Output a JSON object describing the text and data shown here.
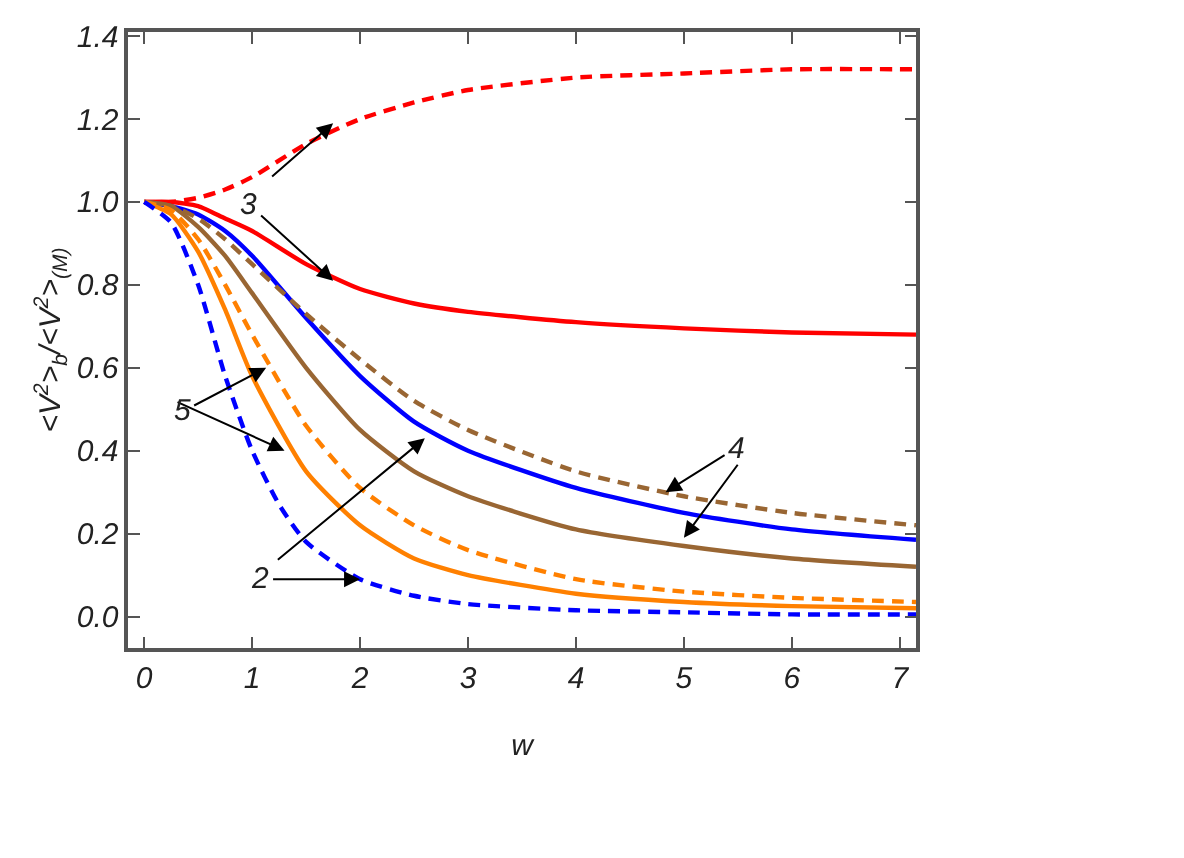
{
  "chart_data": {
    "type": "line",
    "xlabel": "w",
    "ylabel": "<V$^{2}$>$_{b}$/<V$^{2}$>$_{(M)}$",
    "xlim": [
      -0.15,
      7.15
    ],
    "ylim": [
      -0.076,
      1.41
    ],
    "xticks": [
      0,
      1,
      2,
      3,
      4,
      5,
      6,
      7
    ],
    "yticks": [
      {
        "value": 0,
        "label": "0.0"
      },
      0.2,
      0.4,
      0.6,
      0.8,
      {
        "value": 1,
        "label": "1.0"
      },
      1.2,
      1.4
    ],
    "marker": "none",
    "series": [
      {
        "color": "#ff0000",
        "line_style": "dashed",
        "x": [
          0,
          0.25,
          0.5,
          0.75,
          1,
          1.5,
          2,
          2.5,
          3,
          4,
          5,
          6,
          7.15
        ],
        "values": [
          1.0,
          1.0,
          1.01,
          1.03,
          1.06,
          1.14,
          1.2,
          1.24,
          1.27,
          1.3,
          1.31,
          1.32,
          1.32
        ]
      },
      {
        "color": "#ff0000",
        "line_style": "solid",
        "x": [
          0,
          0.25,
          0.5,
          0.75,
          1,
          1.5,
          2,
          2.5,
          3,
          4,
          5,
          6,
          7.15
        ],
        "values": [
          1.0,
          1.0,
          0.99,
          0.96,
          0.93,
          0.85,
          0.79,
          0.755,
          0.735,
          0.71,
          0.695,
          0.685,
          0.68
        ]
      },
      {
        "color": "#0000ff",
        "line_style": "solid",
        "x": [
          0,
          0.25,
          0.5,
          0.75,
          1,
          1.5,
          2,
          2.5,
          3,
          4,
          5,
          6,
          7.15
        ],
        "values": [
          1.0,
          0.99,
          0.97,
          0.93,
          0.87,
          0.72,
          0.58,
          0.47,
          0.4,
          0.31,
          0.25,
          0.21,
          0.185
        ]
      },
      {
        "color": "#996633",
        "line_style": "dashed",
        "x": [
          0,
          0.25,
          0.5,
          0.75,
          1,
          1.5,
          2,
          2.5,
          3,
          4,
          5,
          6,
          7.15
        ],
        "values": [
          1.0,
          0.99,
          0.96,
          0.91,
          0.85,
          0.73,
          0.62,
          0.52,
          0.45,
          0.35,
          0.29,
          0.25,
          0.22
        ]
      },
      {
        "color": "#996633",
        "line_style": "solid",
        "x": [
          0,
          0.25,
          0.5,
          0.75,
          1,
          1.5,
          2,
          2.5,
          3,
          4,
          5,
          6,
          7.15
        ],
        "values": [
          1.0,
          0.99,
          0.94,
          0.87,
          0.78,
          0.6,
          0.45,
          0.35,
          0.29,
          0.21,
          0.17,
          0.14,
          0.12
        ]
      },
      {
        "color": "#ff8000",
        "line_style": "dashed",
        "x": [
          0,
          0.25,
          0.5,
          0.75,
          1,
          1.5,
          2,
          2.5,
          3,
          4,
          5,
          6,
          7.15
        ],
        "values": [
          1.0,
          0.98,
          0.91,
          0.8,
          0.68,
          0.46,
          0.31,
          0.22,
          0.16,
          0.09,
          0.06,
          0.045,
          0.035
        ]
      },
      {
        "color": "#ff8000",
        "line_style": "solid",
        "x": [
          0,
          0.25,
          0.5,
          0.75,
          1,
          1.5,
          2,
          2.5,
          3,
          4,
          5,
          6,
          7.15
        ],
        "values": [
          1.0,
          0.97,
          0.88,
          0.74,
          0.58,
          0.35,
          0.22,
          0.14,
          0.1,
          0.055,
          0.035,
          0.025,
          0.02
        ]
      },
      {
        "color": "#0000ff",
        "line_style": "dashed",
        "x": [
          0,
          0.25,
          0.5,
          0.75,
          1,
          1.25,
          1.5,
          2,
          2.5,
          3,
          4,
          5,
          6,
          7.15
        ],
        "values": [
          1.0,
          0.95,
          0.8,
          0.58,
          0.4,
          0.27,
          0.18,
          0.09,
          0.05,
          0.03,
          0.015,
          0.01,
          0.005,
          0.005
        ]
      }
    ],
    "annotations": [
      {
        "text": "3",
        "x": 1.75,
        "y": 0.81
      },
      {
        "text": "5",
        "x": 1.13,
        "y": 0.6
      },
      {
        "text": "2",
        "x": 2.0,
        "y": 0.09
      },
      {
        "text": "4",
        "x": 4.83,
        "y": 0.3
      }
    ]
  }
}
